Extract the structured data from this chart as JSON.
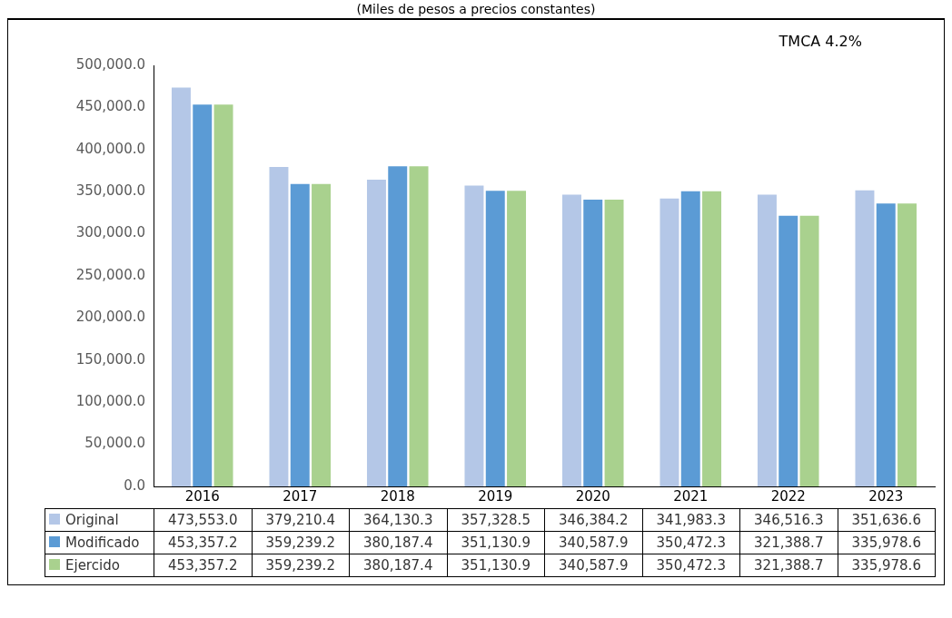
{
  "chart_data": {
    "type": "bar",
    "title": "(Miles de pesos a precios constantes)",
    "annotations": [
      "TMCA 4.2%"
    ],
    "categories": [
      "2016",
      "2017",
      "2018",
      "2019",
      "2020",
      "2021",
      "2022",
      "2023"
    ],
    "series": [
      {
        "name": "Original",
        "color": "#b4c7e7",
        "values": [
          473553.0,
          379210.4,
          364130.3,
          357328.5,
          346384.2,
          341983.3,
          346516.3,
          351636.6
        ],
        "value_labels": [
          "473,553.0",
          "379,210.4",
          "364,130.3",
          "357,328.5",
          "346,384.2",
          "341,983.3",
          "346,516.3",
          "351,636.6"
        ]
      },
      {
        "name": "Modificado",
        "color": "#5b9bd5",
        "values": [
          453357.2,
          359239.2,
          380187.4,
          351130.9,
          340587.9,
          350472.3,
          321388.7,
          335978.6
        ],
        "value_labels": [
          "453,357.2",
          "359,239.2",
          "380,187.4",
          "351,130.9",
          "340,587.9",
          "350,472.3",
          "321,388.7",
          "335,978.6"
        ]
      },
      {
        "name": "Ejercido",
        "color": "#a9d18e",
        "values": [
          453357.2,
          359239.2,
          380187.4,
          351130.9,
          340587.9,
          350472.3,
          321388.7,
          335978.6
        ],
        "value_labels": [
          "453,357.2",
          "359,239.2",
          "380,187.4",
          "351,130.9",
          "340,587.9",
          "350,472.3",
          "321,388.7",
          "335,978.6"
        ]
      }
    ],
    "ylim": [
      0,
      500000
    ],
    "yticks": [
      {
        "value": 0,
        "label": "0.0"
      },
      {
        "value": 50000,
        "label": "50,000.0"
      },
      {
        "value": 100000,
        "label": "100,000.0"
      },
      {
        "value": 150000,
        "label": "150,000.0"
      },
      {
        "value": 200000,
        "label": "200,000.0"
      },
      {
        "value": 250000,
        "label": "250,000.0"
      },
      {
        "value": 300000,
        "label": "300,000.0"
      },
      {
        "value": 350000,
        "label": "350,000.0"
      },
      {
        "value": 400000,
        "label": "400,000.0"
      },
      {
        "value": 450000,
        "label": "450,000.0"
      },
      {
        "value": 500000,
        "label": "500,000.0"
      }
    ],
    "grid": false,
    "legend": "bottom"
  }
}
